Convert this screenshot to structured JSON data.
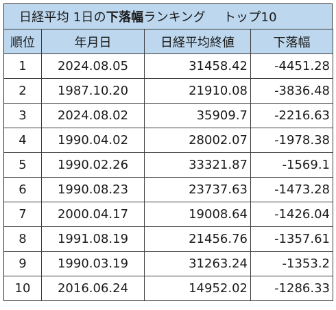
{
  "title": {
    "prefix": "日経平均 1日の",
    "emphasis": "下落幅",
    "suffix": "ランキング",
    "tail": "トップ10"
  },
  "headers": [
    "順位",
    "年月日",
    "日経平均終値",
    "下落幅"
  ],
  "rows": [
    {
      "rank": "1",
      "date": "2024.08.05",
      "close": "31458.42",
      "drop": "-4451.28"
    },
    {
      "rank": "2",
      "date": "1987.10.20",
      "close": "21910.08",
      "drop": "-3836.48"
    },
    {
      "rank": "3",
      "date": "2024.08.02",
      "close": "35909.7",
      "drop": "-2216.63"
    },
    {
      "rank": "4",
      "date": "1990.04.02",
      "close": "28002.07",
      "drop": "-1978.38"
    },
    {
      "rank": "5",
      "date": "1990.02.26",
      "close": "33321.87",
      "drop": "-1569.1"
    },
    {
      "rank": "6",
      "date": "1990.08.23",
      "close": "23737.63",
      "drop": "-1473.28"
    },
    {
      "rank": "7",
      "date": "2000.04.17",
      "close": "19008.64",
      "drop": "-1426.04"
    },
    {
      "rank": "8",
      "date": "1991.08.19",
      "close": "21456.76",
      "drop": "-1357.61"
    },
    {
      "rank": "9",
      "date": "1990.03.19",
      "close": "31263.24",
      "drop": "-1353.2"
    },
    {
      "rank": "10",
      "date": "2016.06.24",
      "close": "14952.02",
      "drop": "-1286.33"
    }
  ],
  "colors": {
    "header_fill": "#bdd7ee",
    "border": "#3a3a3a"
  }
}
